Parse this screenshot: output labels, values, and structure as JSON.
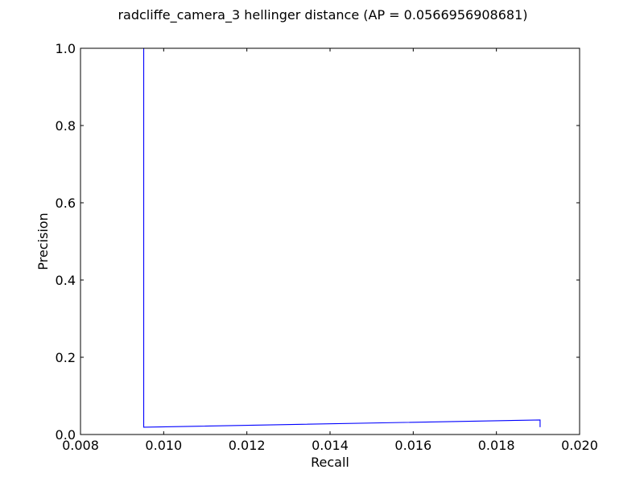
{
  "chart_data": {
    "type": "line",
    "title": "radcliffe_camera_3 hellinger distance  (AP = 0.0566956908681)",
    "xlabel": "Recall",
    "ylabel": "Precision",
    "xlim": [
      0.008,
      0.02
    ],
    "ylim": [
      0.0,
      1.0
    ],
    "x_ticks": [
      "0.008",
      "0.010",
      "0.012",
      "0.014",
      "0.016",
      "0.018",
      "0.020"
    ],
    "y_ticks": [
      "0.0",
      "0.2",
      "0.4",
      "0.6",
      "0.8",
      "1.0"
    ],
    "grid": false,
    "legend": "none",
    "series": [
      {
        "color": "#0000ff",
        "x": [
          0.00952,
          0.00952,
          0.00952,
          0.01905,
          0.01905
        ],
        "y": [
          1.0,
          0.5,
          0.0189,
          0.0377,
          0.0189
        ]
      }
    ]
  }
}
